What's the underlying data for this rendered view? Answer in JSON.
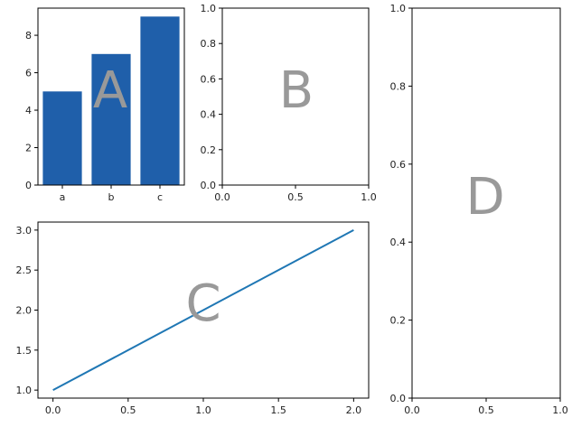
{
  "chart_data": [
    {
      "panel": "A",
      "type": "bar",
      "categories": [
        "a",
        "b",
        "c"
      ],
      "values": [
        5,
        7,
        9
      ],
      "ylim": [
        0,
        9.45
      ],
      "yticks": [
        0,
        2,
        4,
        6,
        8
      ],
      "color": "#1f5faa",
      "title": "",
      "xlabel": "",
      "ylabel": ""
    },
    {
      "panel": "B",
      "type": "scatter",
      "xlim": [
        0,
        1
      ],
      "ylim": [
        0,
        1
      ],
      "xticks": [
        0.0,
        0.5,
        1.0
      ],
      "yticks": [
        0.0,
        0.2,
        0.4,
        0.6,
        0.8,
        1.0
      ],
      "series": [],
      "title": "",
      "xlabel": "",
      "ylabel": ""
    },
    {
      "panel": "C",
      "type": "line",
      "x": [
        0,
        2
      ],
      "y": [
        1,
        3
      ],
      "xlim": [
        -0.1,
        2.1
      ],
      "ylim": [
        0.9,
        3.1
      ],
      "xticks": [
        0.0,
        0.5,
        1.0,
        1.5,
        2.0
      ],
      "yticks": [
        1.0,
        1.5,
        2.0,
        2.5,
        3.0
      ],
      "color": "#1f77b4",
      "title": "",
      "xlabel": "",
      "ylabel": ""
    },
    {
      "panel": "D",
      "type": "scatter",
      "xlim": [
        0,
        1
      ],
      "ylim": [
        0,
        1
      ],
      "xticks": [
        0.0,
        0.5,
        1.0
      ],
      "yticks": [
        0.0,
        0.2,
        0.4,
        0.6,
        0.8,
        1.0
      ],
      "series": [],
      "title": "",
      "xlabel": "",
      "ylabel": ""
    }
  ],
  "panel_labels": {
    "a": "A",
    "b": "B",
    "c": "C",
    "d": "D"
  },
  "colors": {
    "axis": "#000000",
    "label_gray": "#999999"
  }
}
